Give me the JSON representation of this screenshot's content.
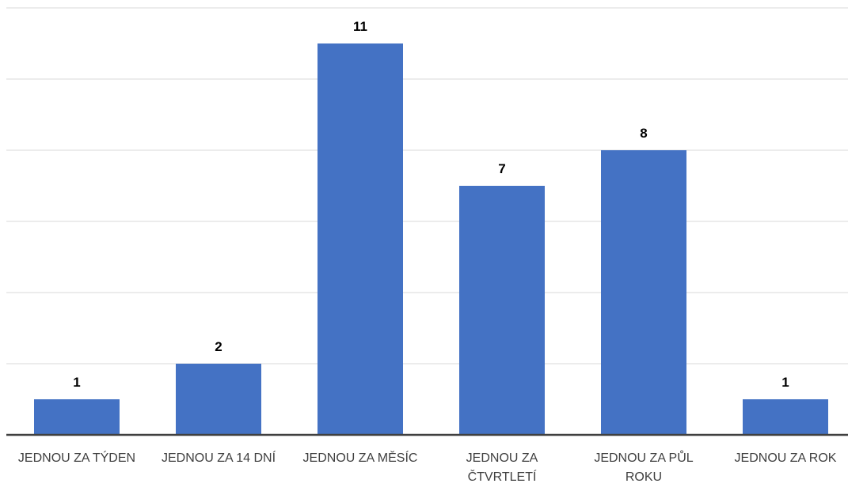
{
  "chart_data": {
    "type": "bar",
    "categories": [
      "JEDNOU ZA TÝDEN",
      "JEDNOU ZA 14 DNÍ",
      "JEDNOU ZA MĚSÍC",
      "JEDNOU ZA ČTVRTLETÍ",
      "JEDNOU ZA PŮL ROKU",
      "JEDNOU ZA ROK"
    ],
    "values": [
      1,
      2,
      11,
      7,
      8,
      1
    ],
    "color": "#4472c4",
    "ylim": [
      0,
      12
    ],
    "yticks": [
      0,
      2,
      4,
      6,
      8,
      10,
      12
    ],
    "grid": true
  }
}
